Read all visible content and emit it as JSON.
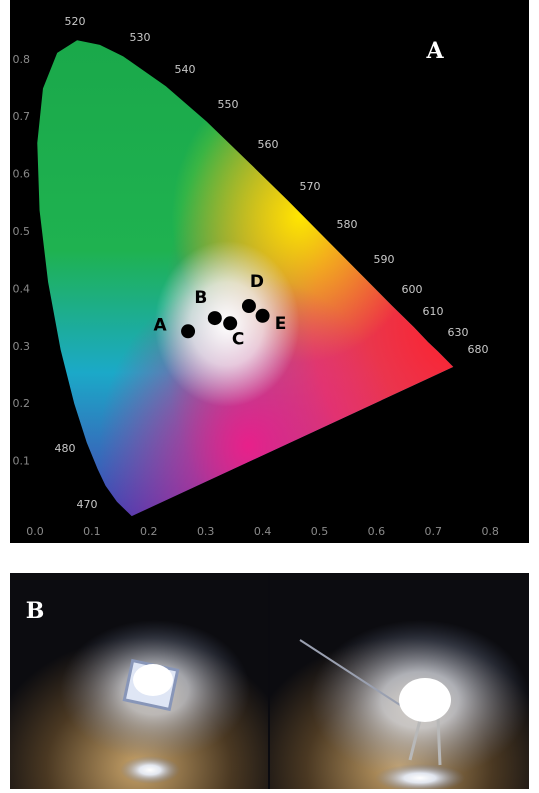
{
  "chart_data": {
    "type": "scatter",
    "panel_label": "A",
    "x": [
      0.269,
      0.316,
      0.343,
      0.376,
      0.4
    ],
    "values": [
      0.327,
      0.35,
      0.341,
      0.371,
      0.354
    ],
    "point_labels": [
      "A",
      "B",
      "C",
      "D",
      "E"
    ],
    "color": "#000000",
    "xlim": [
      0,
      0.85
    ],
    "ylim": [
      0,
      0.9
    ],
    "xticks": [
      {
        "value": 0,
        "label": "0.0"
      },
      0.1,
      0.2,
      0.3,
      0.4,
      0.5,
      0.6,
      0.7,
      0.8
    ],
    "yticks": [
      0.1,
      0.2,
      0.3,
      0.4,
      0.5,
      0.6,
      0.7,
      0.8
    ],
    "wavelength_labels": [
      520,
      530,
      540,
      550,
      560,
      570,
      580,
      590,
      600,
      610,
      630,
      680,
      480,
      470
    ],
    "grid": false
  },
  "photo_panel": {
    "label": "B"
  }
}
